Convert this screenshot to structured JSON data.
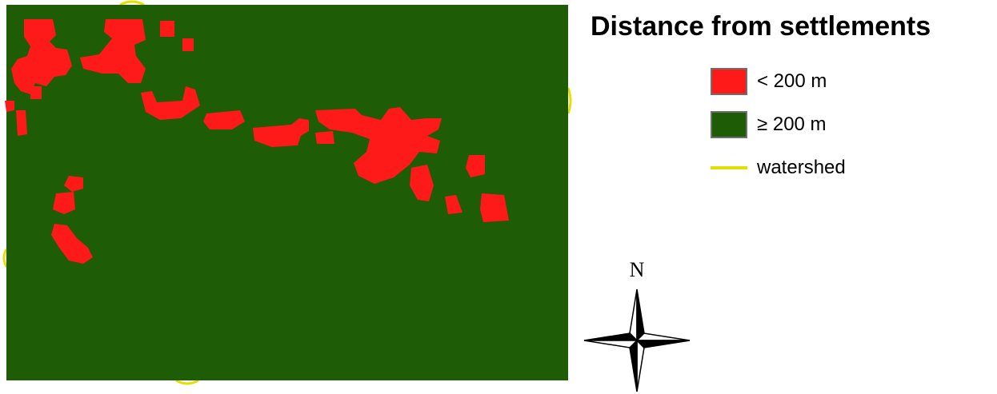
{
  "legend": {
    "title": "Distance from settlements",
    "items": [
      {
        "label": "< 200 m",
        "type": "fill",
        "color": "#ff1a1a"
      },
      {
        "label": "≥ 200 m",
        "type": "fill",
        "color": "#1e5c05"
      },
      {
        "label": "watershed",
        "type": "line",
        "color": "#e1e000"
      }
    ]
  },
  "north_arrow": {
    "label": "N",
    "icon": "compass-rose-icon"
  },
  "colors": {
    "near": "#ff1a1a",
    "far": "#1e5c05",
    "watershed": "#e1e000"
  }
}
